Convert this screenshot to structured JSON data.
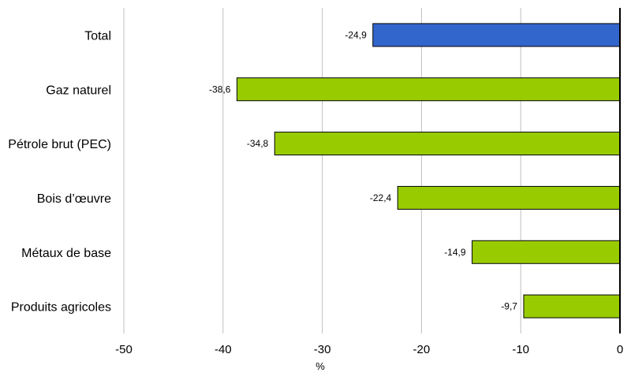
{
  "chart_data": {
    "type": "bar",
    "orientation": "horizontal",
    "categories": [
      "Total",
      "Gaz naturel",
      "Pétrole brut (PEC)",
      "Bois d’œuvre",
      "Métaux de base",
      "Produits agricoles"
    ],
    "values": [
      -24.9,
      -38.6,
      -34.8,
      -22.4,
      -14.9,
      -9.7
    ],
    "value_labels": [
      "-24,9",
      "-38,6",
      "-34,8",
      "-22,4",
      "-14,9",
      "-9,7"
    ],
    "bar_colors": [
      "#3366cc",
      "#99cc00",
      "#99cc00",
      "#99cc00",
      "#99cc00",
      "#99cc00"
    ],
    "xlabel": "%",
    "xlim": [
      -50,
      0
    ],
    "xticks": [
      -50,
      -40,
      -30,
      -20,
      -10,
      0
    ],
    "xtick_labels": [
      "-50",
      "-40",
      "-30",
      "-20",
      "-10",
      "0"
    ],
    "grid": true
  }
}
